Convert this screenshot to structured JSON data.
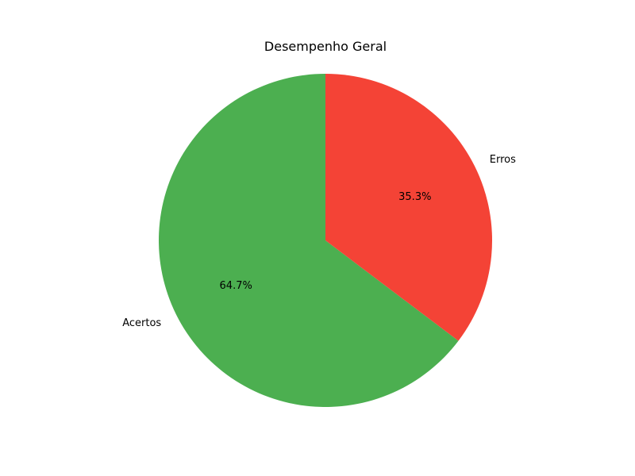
{
  "chart_data": {
    "type": "pie",
    "title": "Desempenho Geral",
    "categories": [
      "Acertos",
      "Erros"
    ],
    "values": [
      64.7,
      35.3
    ],
    "percent_labels": [
      "64.7%",
      "35.3%"
    ],
    "colors": [
      "#4caf50",
      "#f44336"
    ],
    "start_angle_deg": 90,
    "direction": "counterclockwise",
    "legend": "none"
  }
}
